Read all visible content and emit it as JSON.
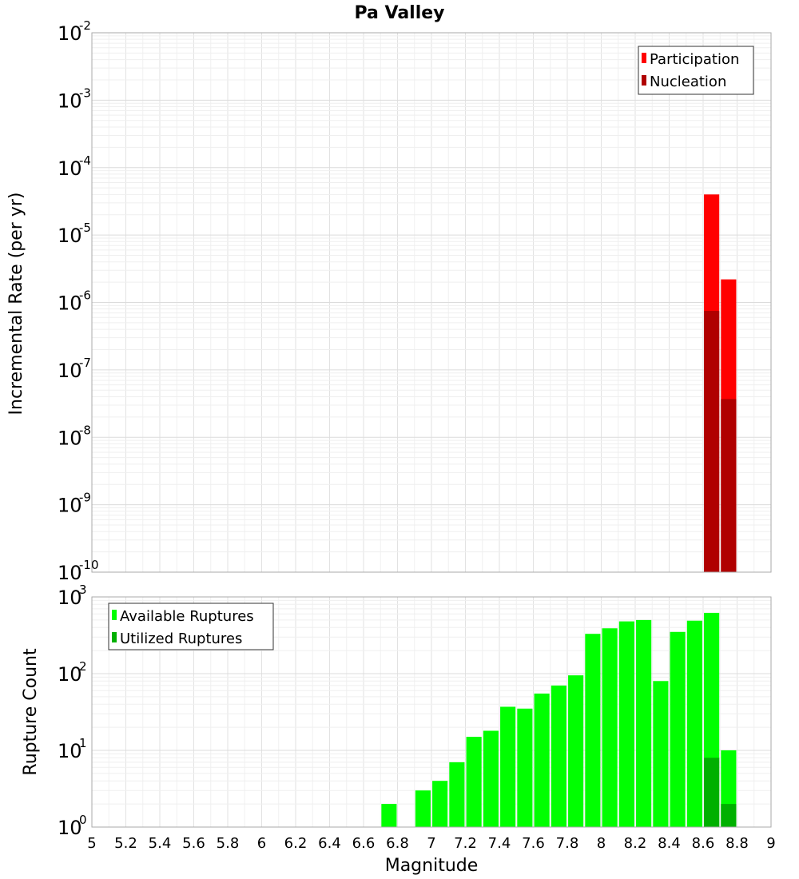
{
  "chart_data": [
    {
      "type": "bar",
      "title": "Pa Valley",
      "ylabel": "Incremental Rate (per yr)",
      "xlabel": "",
      "xlim": [
        5,
        9
      ],
      "ylim_exponents": [
        -10,
        -2
      ],
      "y_scale": "log",
      "grid": true,
      "legend_position": "top-right",
      "bar_width": 0.09,
      "series": [
        {
          "name": "Participation",
          "color": "#ff0000",
          "points": [
            {
              "x": 8.65,
              "y": 4e-05
            },
            {
              "x": 8.75,
              "y": 2.2e-06
            }
          ]
        },
        {
          "name": "Nucleation",
          "color": "#b00000",
          "points": [
            {
              "x": 8.65,
              "y": 7.5e-07
            },
            {
              "x": 8.75,
              "y": 3.7e-08
            }
          ]
        }
      ]
    },
    {
      "type": "bar",
      "title": "",
      "ylabel": "Rupture Count",
      "xlabel": "Magnitude",
      "xlim": [
        5,
        9
      ],
      "x_ticks": [
        "5",
        "5.2",
        "5.4",
        "5.6",
        "5.8",
        "6",
        "6.2",
        "6.4",
        "6.6",
        "6.8",
        "7",
        "7.2",
        "7.4",
        "7.6",
        "7.8",
        "8",
        "8.2",
        "8.4",
        "8.6",
        "8.8",
        "9"
      ],
      "ylim_exponents": [
        0,
        3
      ],
      "y_scale": "log",
      "grid": true,
      "legend_position": "top-left",
      "bar_width": 0.09,
      "series": [
        {
          "name": "Available Ruptures",
          "color": "#00ff00",
          "points": [
            {
              "x": 6.75,
              "y": 2
            },
            {
              "x": 6.95,
              "y": 3
            },
            {
              "x": 7.05,
              "y": 4
            },
            {
              "x": 7.15,
              "y": 7
            },
            {
              "x": 7.25,
              "y": 15
            },
            {
              "x": 7.35,
              "y": 18
            },
            {
              "x": 7.45,
              "y": 37
            },
            {
              "x": 7.55,
              "y": 35
            },
            {
              "x": 7.65,
              "y": 55
            },
            {
              "x": 7.75,
              "y": 70
            },
            {
              "x": 7.85,
              "y": 95
            },
            {
              "x": 7.95,
              "y": 330
            },
            {
              "x": 8.05,
              "y": 390
            },
            {
              "x": 8.15,
              "y": 480
            },
            {
              "x": 8.25,
              "y": 500
            },
            {
              "x": 8.35,
              "y": 80
            },
            {
              "x": 8.45,
              "y": 350
            },
            {
              "x": 8.55,
              "y": 490
            },
            {
              "x": 8.65,
              "y": 620
            },
            {
              "x": 8.75,
              "y": 10
            }
          ]
        },
        {
          "name": "Utilized Ruptures",
          "color": "#00b000",
          "points": [
            {
              "x": 8.65,
              "y": 8
            },
            {
              "x": 8.75,
              "y": 2
            }
          ]
        }
      ]
    }
  ]
}
